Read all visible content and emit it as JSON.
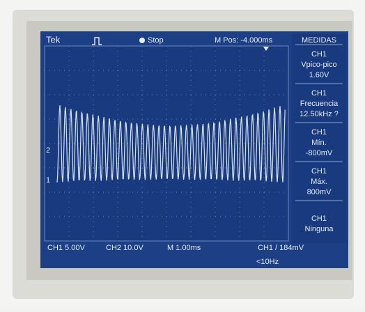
{
  "header": {
    "brand": "Tek",
    "status": "Stop",
    "position": "M Pos: -4.000ms",
    "menu_title": "MEDIDAS"
  },
  "measurements": [
    {
      "source": "CH1",
      "label": "Vpico-pico",
      "value": "1.60V"
    },
    {
      "source": "CH1",
      "label": "Frecuencia",
      "value": "12.50kHz ?"
    },
    {
      "source": "CH1",
      "label": "Mín.",
      "value": "-800mV"
    },
    {
      "source": "CH1",
      "label": "Máx.",
      "value": "800mV"
    },
    {
      "source": "CH1",
      "label": "Ninguna"
    }
  ],
  "markers": [
    "2",
    "1"
  ],
  "footer": {
    "ch1": "CH1 5.00V",
    "ch2": "CH2 10.0V",
    "timebase": "M 1.00ms",
    "trigger": "CH1 / 184mV",
    "frequency": "<10Hz"
  }
}
